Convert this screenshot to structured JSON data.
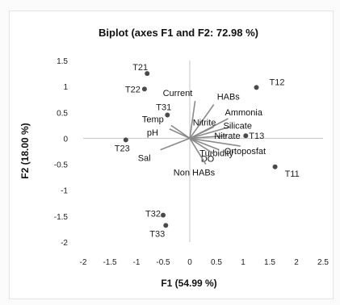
{
  "chart_data": {
    "type": "scatter",
    "title": "Biplot (axes F1 and F2: 72.98 %)",
    "xlabel": "F1 (54.99 %)",
    "ylabel": "F2 (18.00 %)",
    "xlim": [
      -2,
      2.5
    ],
    "ylim": [
      -2,
      1.5
    ],
    "xticks": [
      "-2",
      "-1.5",
      "-1",
      "-0.5",
      "0",
      "0.5",
      "1",
      "1.5",
      "2",
      "2.5"
    ],
    "yticks": [
      "1.5",
      "1",
      "0.5",
      "0",
      "-0.5",
      "-1",
      "-1.5",
      "-2"
    ],
    "grid": false,
    "observations": [
      {
        "label": "T21",
        "x": -0.8,
        "y": 1.25
      },
      {
        "label": "T22",
        "x": -0.85,
        "y": 0.95
      },
      {
        "label": "T31",
        "x": -0.42,
        "y": 0.45
      },
      {
        "label": "T23",
        "x": -1.2,
        "y": -0.03
      },
      {
        "label": "T12",
        "x": 1.25,
        "y": 0.98
      },
      {
        "label": "T13",
        "x": 1.05,
        "y": 0.05
      },
      {
        "label": "T11",
        "x": 1.6,
        "y": -0.55
      },
      {
        "label": "T32",
        "x": -0.5,
        "y": -1.48
      },
      {
        "label": "T33",
        "x": -0.45,
        "y": -1.68
      }
    ],
    "variables": [
      {
        "label": "Current",
        "x": 0.1,
        "y": 0.72
      },
      {
        "label": "HABs",
        "x": 0.45,
        "y": 0.65
      },
      {
        "label": "Temp",
        "x": -0.35,
        "y": 0.25
      },
      {
        "label": "pH",
        "x": -0.38,
        "y": 0.18
      },
      {
        "label": "Sal",
        "x": -0.55,
        "y": -0.22
      },
      {
        "label": "Ammonia",
        "x": 0.72,
        "y": 0.38
      },
      {
        "label": "Nitrite",
        "x": 0.45,
        "y": 0.22
      },
      {
        "label": "Silicate",
        "x": 0.75,
        "y": 0.22
      },
      {
        "label": "Nitrate",
        "x": 0.7,
        "y": 0.05
      },
      {
        "label": "Ortoposfat",
        "x": 0.95,
        "y": -0.15
      },
      {
        "label": "Turbidity",
        "x": 0.55,
        "y": -0.22
      },
      {
        "label": "DO",
        "x": 0.45,
        "y": -0.3
      },
      {
        "label": "Non HABs",
        "x": 0.3,
        "y": -0.5
      }
    ],
    "colors": {
      "observation": "#4a4a4a",
      "vector": "#8a8a8a"
    }
  }
}
